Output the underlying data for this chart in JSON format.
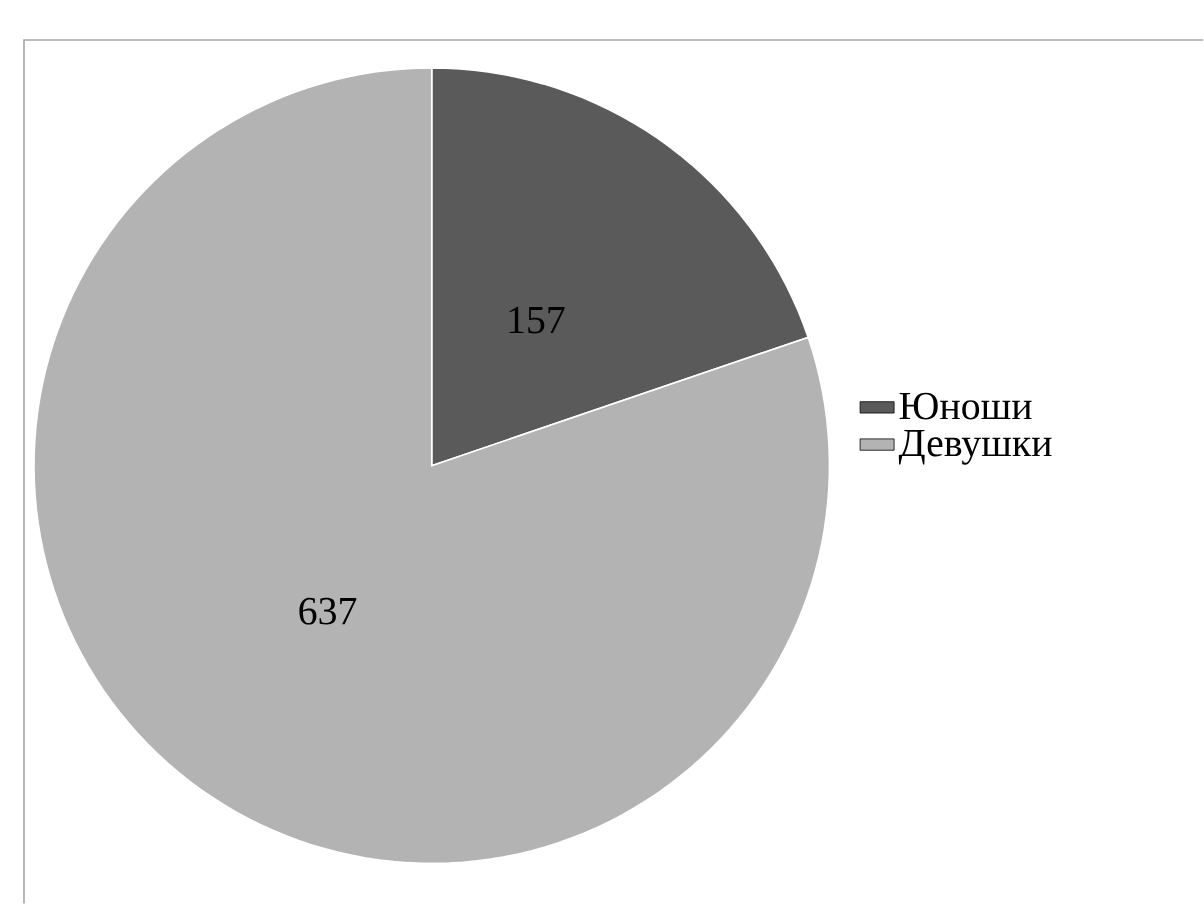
{
  "chart_data": {
    "type": "pie",
    "categories": [
      "Юноши",
      "Девушки"
    ],
    "values": [
      157,
      637
    ],
    "colors": [
      "#5a5a5a",
      "#b3b3b3"
    ],
    "data_labels": true,
    "legend": "right"
  }
}
